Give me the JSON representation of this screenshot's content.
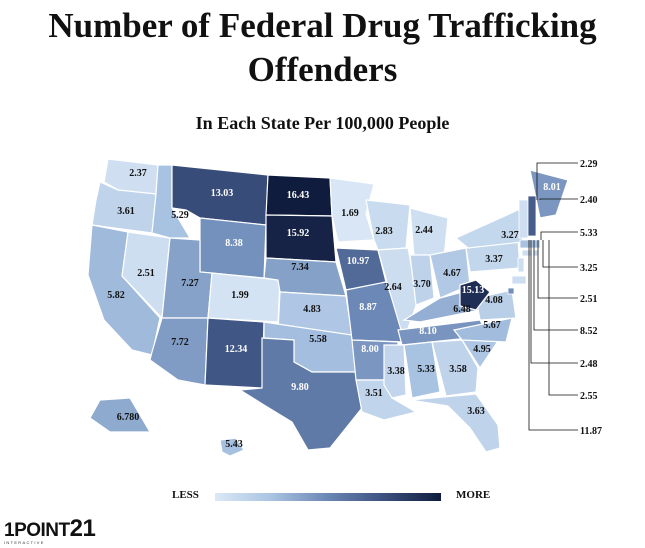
{
  "title_line1": "Number of Federal Drug Trafficking",
  "title_line2": "Offenders",
  "subtitle": "In Each State Per 100,000 People",
  "legend": {
    "less": "LESS",
    "more": "MORE",
    "colors": [
      "#dbe8f6",
      "#a9c3e2",
      "#6a86b4",
      "#3b507e",
      "#0f1b3c"
    ]
  },
  "logo": {
    "main": "1POINT",
    "number": "21",
    "sub": "INTERACTIVE"
  },
  "states": [
    {
      "state": "WA",
      "label": "2.37",
      "value": 2.37
    },
    {
      "state": "OR",
      "label": "3.61",
      "value": 3.61
    },
    {
      "state": "CA",
      "label": "5.82",
      "value": 5.82
    },
    {
      "state": "NV",
      "label": "2.51",
      "value": 2.51
    },
    {
      "state": "ID",
      "label": "5.29",
      "value": 5.29
    },
    {
      "state": "MT",
      "label": "13.03",
      "value": 13.03
    },
    {
      "state": "WY",
      "label": "8.38",
      "value": 8.38
    },
    {
      "state": "UT",
      "label": "7.27",
      "value": 7.27
    },
    {
      "state": "CO",
      "label": "1.99",
      "value": 1.99
    },
    {
      "state": "AZ",
      "label": "7.72",
      "value": 7.72
    },
    {
      "state": "NM",
      "label": "12.34",
      "value": 12.34
    },
    {
      "state": "ND",
      "label": "16.43",
      "value": 16.43
    },
    {
      "state": "SD",
      "label": "15.92",
      "value": 15.92
    },
    {
      "state": "NE",
      "label": "7.34",
      "value": 7.34
    },
    {
      "state": "KS",
      "label": "4.83",
      "value": 4.83
    },
    {
      "state": "OK",
      "label": "5.58",
      "value": 5.58
    },
    {
      "state": "TX",
      "label": "9.80",
      "value": 9.8
    },
    {
      "state": "MN",
      "label": "1.69",
      "value": 1.69
    },
    {
      "state": "IA",
      "label": "10.97",
      "value": 10.97
    },
    {
      "state": "MO",
      "label": "8.87",
      "value": 8.87
    },
    {
      "state": "AR",
      "label": "8.00",
      "value": 8.0
    },
    {
      "state": "LA",
      "label": "3.51",
      "value": 3.51
    },
    {
      "state": "WI",
      "label": "2.83",
      "value": 2.83
    },
    {
      "state": "IL",
      "label": "2.64",
      "value": 2.64
    },
    {
      "state": "MI",
      "label": "2.44",
      "value": 2.44
    },
    {
      "state": "IN",
      "label": "3.70",
      "value": 3.7
    },
    {
      "state": "OH",
      "label": "4.67",
      "value": 4.67
    },
    {
      "state": "KY",
      "label": "6.48",
      "value": 6.48
    },
    {
      "state": "TN",
      "label": "8.10",
      "value": 8.1
    },
    {
      "state": "MS",
      "label": "3.38",
      "value": 3.38
    },
    {
      "state": "AL",
      "label": "5.33",
      "value": 5.33
    },
    {
      "state": "GA",
      "label": "3.58",
      "value": 3.58
    },
    {
      "state": "FL",
      "label": "3.63",
      "value": 3.63
    },
    {
      "state": "SC",
      "label": "4.95",
      "value": 4.95
    },
    {
      "state": "NC",
      "label": "5.67",
      "value": 5.67
    },
    {
      "state": "VA",
      "label": "4.08",
      "value": 4.08
    },
    {
      "state": "WV",
      "label": "15.13",
      "value": 15.13
    },
    {
      "state": "PA",
      "label": "3.37",
      "value": 3.37
    },
    {
      "state": "NY",
      "label": "3.27",
      "value": 3.27
    },
    {
      "state": "ME",
      "label": "8.01",
      "value": 8.01
    },
    {
      "state": "AK",
      "label": "6.780",
      "value": 6.78
    },
    {
      "state": "HI",
      "label": "5.43",
      "value": 5.43
    }
  ],
  "callouts": [
    {
      "label": "2.29",
      "value": 2.29
    },
    {
      "label": "2.40",
      "value": 2.4
    },
    {
      "label": "5.33",
      "value": 5.33
    },
    {
      "label": "3.25",
      "value": 3.25
    },
    {
      "label": "2.51",
      "value": 2.51
    },
    {
      "label": "8.52",
      "value": 8.52
    },
    {
      "label": "2.48",
      "value": 2.48
    },
    {
      "label": "2.55",
      "value": 2.55
    },
    {
      "label": "11.87",
      "value": 11.87
    }
  ]
}
